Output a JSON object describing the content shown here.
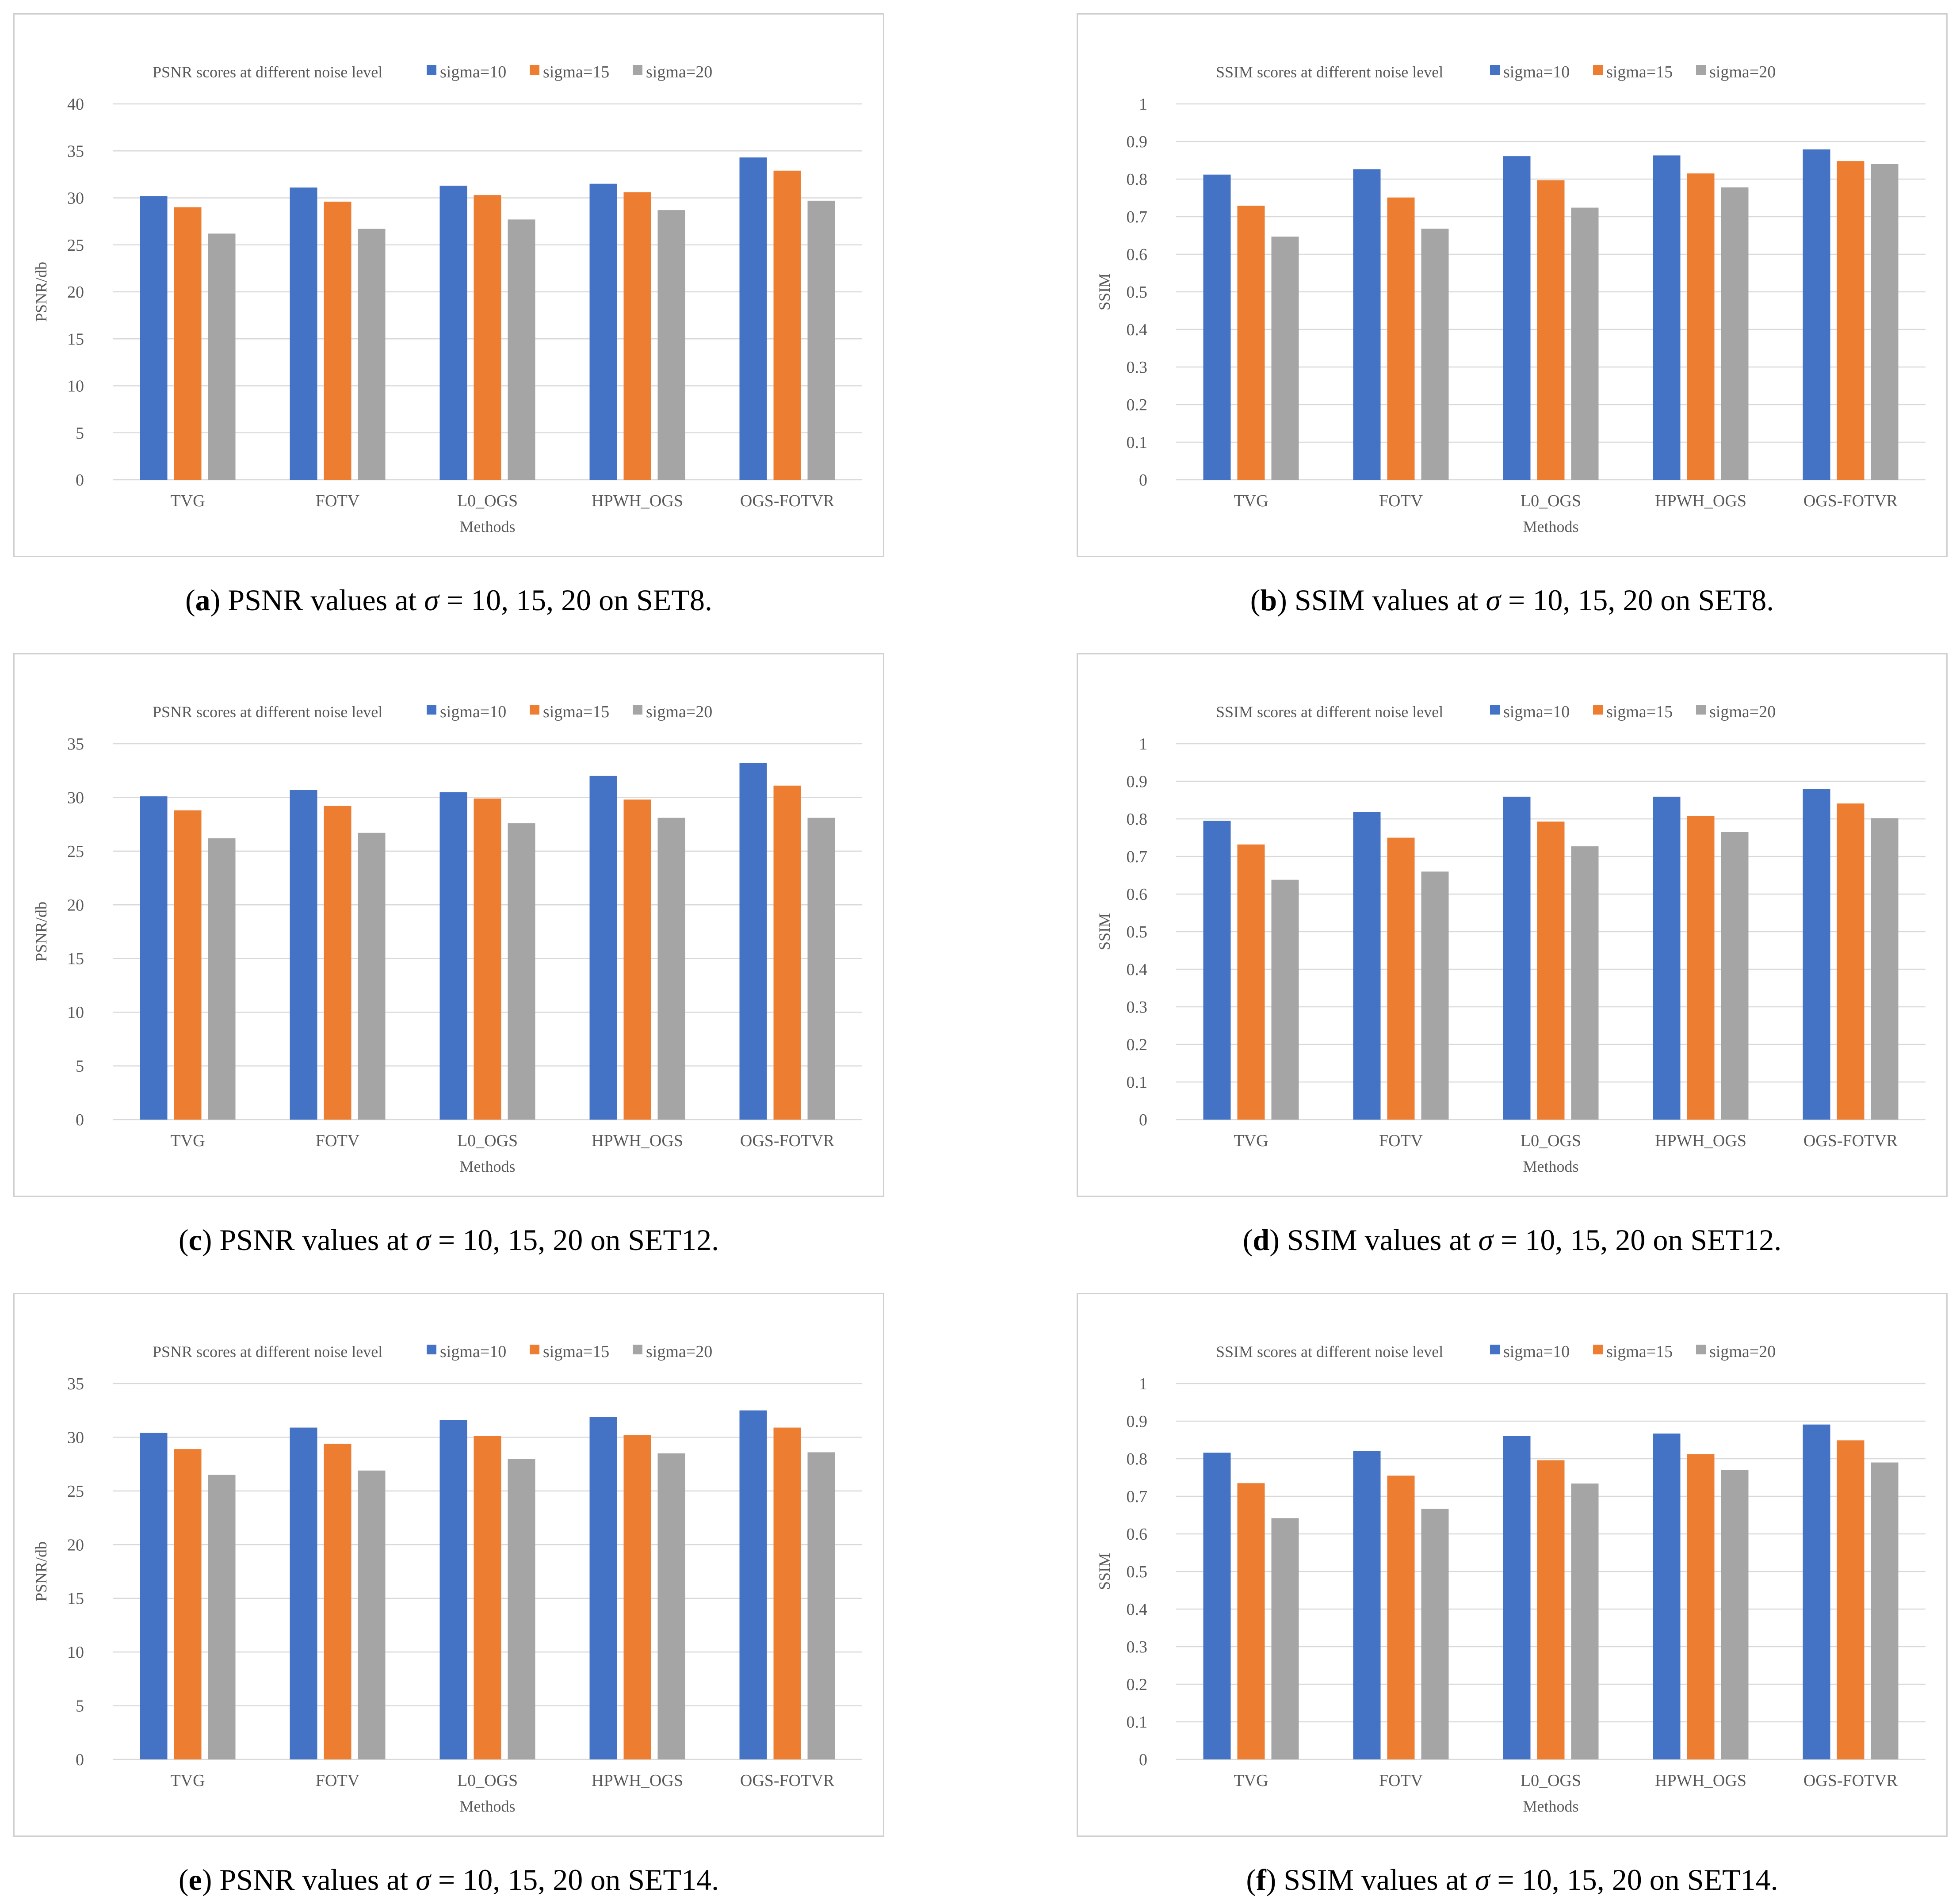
{
  "colors": {
    "series": [
      "#4472C4",
      "#ED7D31",
      "#A5A5A5"
    ]
  },
  "chart_data": [
    {
      "type": "bar",
      "title": "PSNR scores at different noise level",
      "xlabel": "Methods",
      "ylabel": "PSNR/db",
      "ylim": [
        0,
        40
      ],
      "ystep": 5,
      "yticks": [
        "0",
        "5",
        "10",
        "15",
        "20",
        "25",
        "30",
        "35",
        "40"
      ],
      "categories": [
        "TVG",
        "FOTV",
        "L0_OGS",
        "HPWH_OGS",
        "OGS-FOTVR"
      ],
      "series": [
        {
          "name": "sigma=10",
          "values": [
            30.2,
            31.1,
            31.3,
            31.5,
            34.3
          ]
        },
        {
          "name": "sigma=15",
          "values": [
            29.0,
            29.6,
            30.3,
            30.6,
            32.9
          ]
        },
        {
          "name": "sigma=20",
          "values": [
            26.2,
            26.7,
            27.7,
            28.7,
            29.7
          ]
        }
      ],
      "legend": "top",
      "grid": true
    },
    {
      "type": "bar",
      "title": "SSIM scores at different noise level",
      "xlabel": "Methods",
      "ylabel": "SSIM",
      "ylim": [
        0,
        1
      ],
      "ystep": 0.1,
      "yticks": [
        "0",
        "0.1",
        "0.2",
        "0.3",
        "0.4",
        "0.5",
        "0.6",
        "0.7",
        "0.8",
        "0.9",
        "1"
      ],
      "categories": [
        "TVG",
        "FOTV",
        "L0_OGS",
        "HPWH_OGS",
        "OGS-FOTVR"
      ],
      "series": [
        {
          "name": "sigma=10",
          "values": [
            0.812,
            0.826,
            0.861,
            0.863,
            0.879
          ]
        },
        {
          "name": "sigma=15",
          "values": [
            0.729,
            0.751,
            0.797,
            0.815,
            0.848
          ]
        },
        {
          "name": "sigma=20",
          "values": [
            0.647,
            0.668,
            0.724,
            0.778,
            0.84
          ]
        }
      ],
      "legend": "top",
      "grid": true
    },
    {
      "type": "bar",
      "title": "PSNR scores at different noise level",
      "xlabel": "Methods",
      "ylabel": "PSNR/db",
      "ylim": [
        0,
        35
      ],
      "ystep": 5,
      "yticks": [
        "0",
        "5",
        "10",
        "15",
        "20",
        "25",
        "30",
        "35"
      ],
      "categories": [
        "TVG",
        "FOTV",
        "L0_OGS",
        "HPWH_OGS",
        "OGS-FOTVR"
      ],
      "series": [
        {
          "name": "sigma=10",
          "values": [
            30.1,
            30.7,
            30.5,
            32.0,
            33.2
          ]
        },
        {
          "name": "sigma=15",
          "values": [
            28.8,
            29.2,
            29.9,
            29.8,
            31.1
          ]
        },
        {
          "name": "sigma=20",
          "values": [
            26.2,
            26.7,
            27.6,
            28.1,
            28.1
          ]
        }
      ],
      "legend": "top",
      "grid": true
    },
    {
      "type": "bar",
      "title": "SSIM scores at different noise level",
      "xlabel": "Methods",
      "ylabel": "SSIM",
      "ylim": [
        0,
        1
      ],
      "ystep": 0.1,
      "yticks": [
        "0",
        "0.1",
        "0.2",
        "0.3",
        "0.4",
        "0.5",
        "0.6",
        "0.7",
        "0.8",
        "0.9",
        "1"
      ],
      "categories": [
        "TVG",
        "FOTV",
        "L0_OGS",
        "HPWH_OGS",
        "OGS-FOTVR"
      ],
      "series": [
        {
          "name": "sigma=10",
          "values": [
            0.795,
            0.818,
            0.859,
            0.859,
            0.879
          ]
        },
        {
          "name": "sigma=15",
          "values": [
            0.732,
            0.75,
            0.793,
            0.808,
            0.841
          ]
        },
        {
          "name": "sigma=20",
          "values": [
            0.638,
            0.66,
            0.727,
            0.765,
            0.802
          ]
        }
      ],
      "legend": "top",
      "grid": true
    },
    {
      "type": "bar",
      "title": "PSNR scores at different noise level",
      "xlabel": "Methods",
      "ylabel": "PSNR/db",
      "ylim": [
        0,
        35
      ],
      "ystep": 5,
      "yticks": [
        "0",
        "5",
        "10",
        "15",
        "20",
        "25",
        "30",
        "35"
      ],
      "categories": [
        "TVG",
        "FOTV",
        "L0_OGS",
        "HPWH_OGS",
        "OGS-FOTVR"
      ],
      "series": [
        {
          "name": "sigma=10",
          "values": [
            30.4,
            30.9,
            31.6,
            31.9,
            32.5
          ]
        },
        {
          "name": "sigma=15",
          "values": [
            28.9,
            29.4,
            30.1,
            30.2,
            30.9
          ]
        },
        {
          "name": "sigma=20",
          "values": [
            26.5,
            26.9,
            28.0,
            28.5,
            28.6
          ]
        }
      ],
      "legend": "top",
      "grid": true
    },
    {
      "type": "bar",
      "title": "SSIM scores at different noise level",
      "xlabel": "Methods",
      "ylabel": "SSIM",
      "ylim": [
        0,
        1
      ],
      "ystep": 0.1,
      "yticks": [
        "0",
        "0.1",
        "0.2",
        "0.3",
        "0.4",
        "0.5",
        "0.6",
        "0.7",
        "0.8",
        "0.9",
        "1"
      ],
      "categories": [
        "TVG",
        "FOTV",
        "L0_OGS",
        "HPWH_OGS",
        "OGS-FOTVR"
      ],
      "series": [
        {
          "name": "sigma=10",
          "values": [
            0.816,
            0.82,
            0.86,
            0.867,
            0.891
          ]
        },
        {
          "name": "sigma=15",
          "values": [
            0.735,
            0.755,
            0.796,
            0.812,
            0.849
          ]
        },
        {
          "name": "sigma=20",
          "values": [
            0.642,
            0.667,
            0.734,
            0.77,
            0.79
          ]
        }
      ],
      "legend": "top",
      "grid": true
    }
  ],
  "captions": [
    {
      "label": "a",
      "metric": "PSNR values at",
      "sigma": "σ",
      "values": "= 10, 15, 20",
      "dataset": "on SET8."
    },
    {
      "label": "b",
      "metric": "SSIM values at",
      "sigma": "σ",
      "values": "= 10, 15, 20",
      "dataset": "on SET8."
    },
    {
      "label": "c",
      "metric": "PSNR values at",
      "sigma": "σ",
      "values": "= 10, 15, 20",
      "dataset": "on SET12."
    },
    {
      "label": "d",
      "metric": "SSIM values at",
      "sigma": "σ",
      "values": "= 10, 15, 20",
      "dataset": "on SET12."
    },
    {
      "label": "e",
      "metric": "PSNR values at",
      "sigma": "σ",
      "values": "= 10, 15, 20",
      "dataset": "on SET14."
    },
    {
      "label": "f",
      "metric": "SSIM values at",
      "sigma": "σ",
      "values": "= 10, 15, 20",
      "dataset": "on SET14."
    }
  ]
}
